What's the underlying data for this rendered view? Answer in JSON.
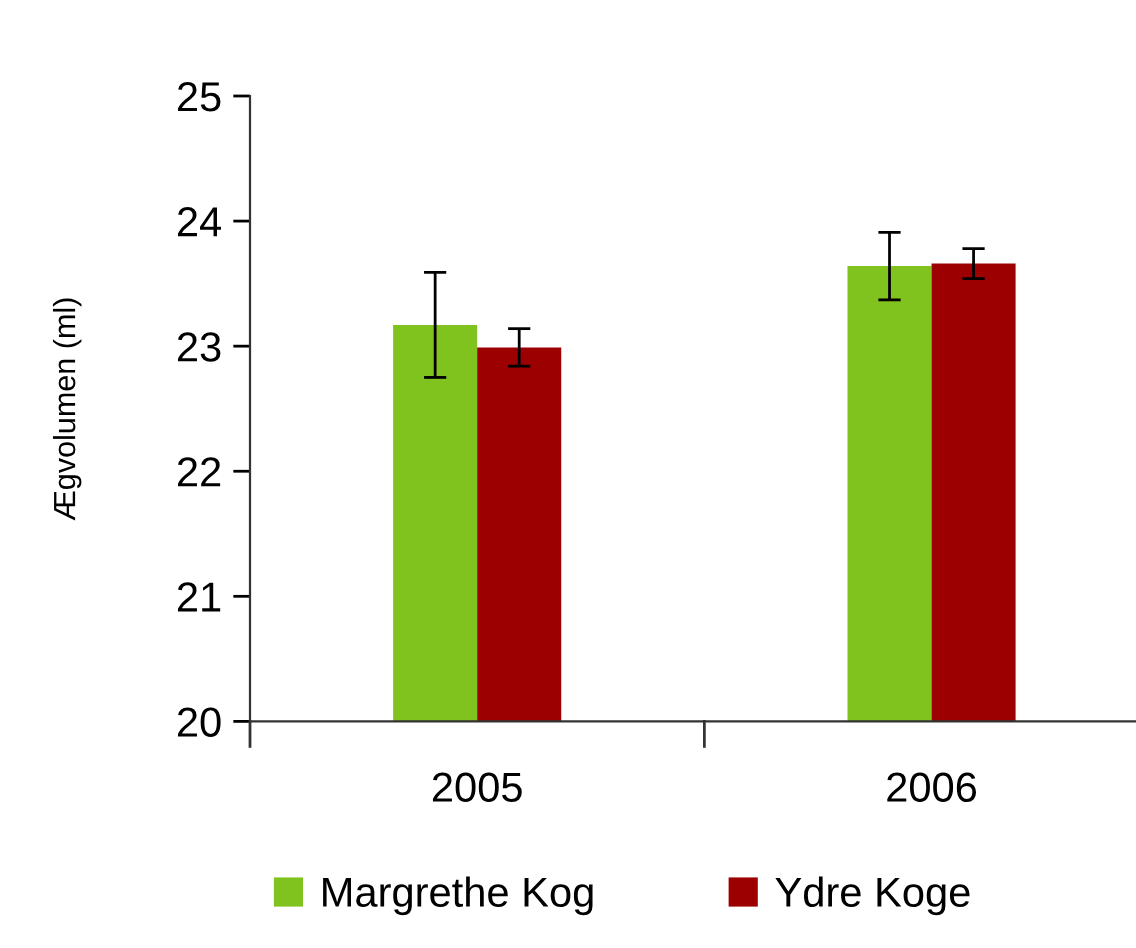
{
  "chart_data": {
    "type": "bar",
    "ylabel": "Ægvolumen (ml)",
    "categories": [
      "2005",
      "2006"
    ],
    "series": [
      {
        "name": "Margrethe Kog",
        "color": "#80c31f",
        "values": [
          23.17,
          23.64
        ],
        "errors": [
          0.42,
          0.27
        ]
      },
      {
        "name": "Ydre Koge",
        "color": "#9d0000",
        "values": [
          22.99,
          23.66
        ],
        "errors": [
          0.15,
          0.12
        ]
      }
    ],
    "ylim": [
      20,
      25
    ],
    "yticks": [
      20,
      21,
      22,
      23,
      24,
      25
    ],
    "legend": "bottom"
  }
}
